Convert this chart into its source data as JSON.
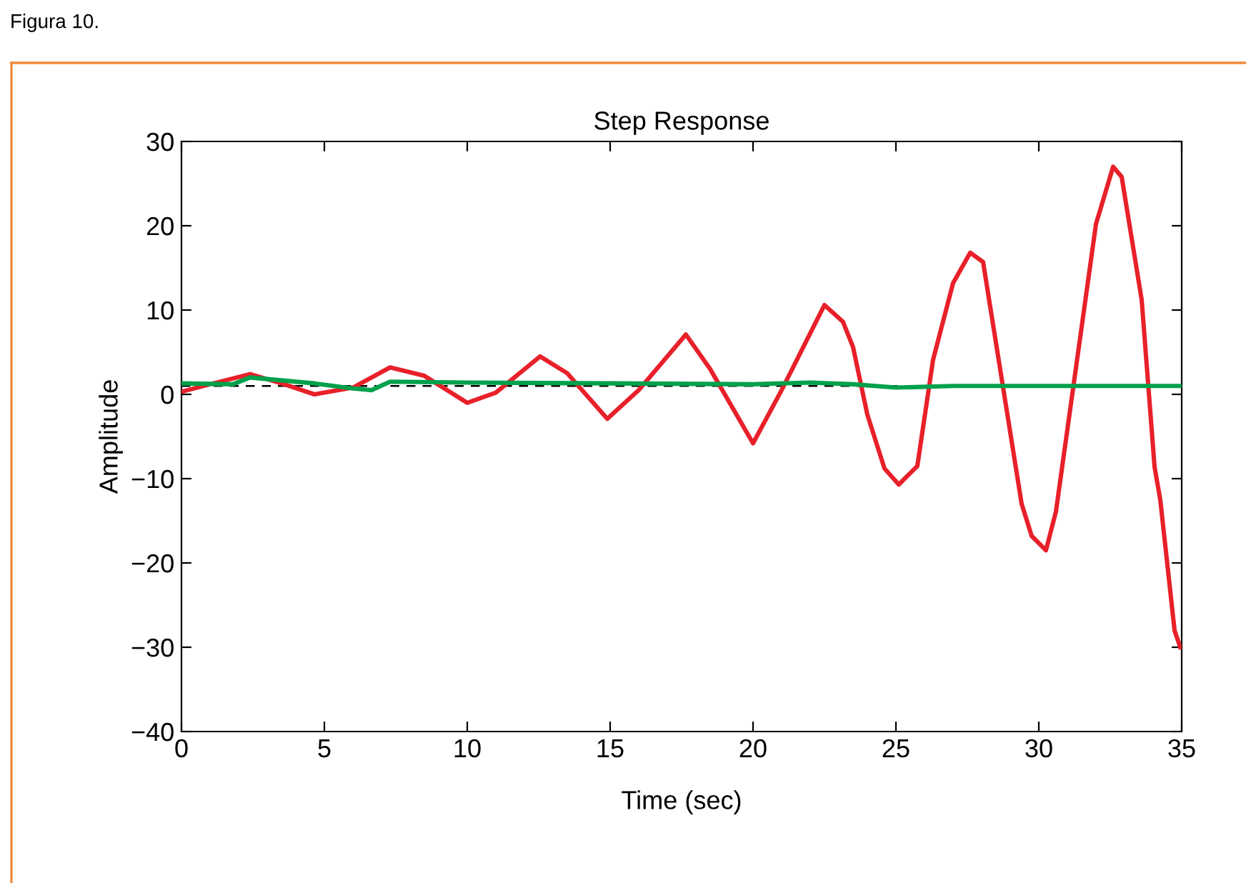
{
  "chart_data": {
    "type": "line",
    "title": "Step Response",
    "xlabel": "Time (sec)",
    "ylabel": "Amplitude",
    "annotations": [
      "Figura 10."
    ],
    "series": [
      {
        "color": "#e8202a",
        "x": [
          0,
          1,
          2.4,
          3.5,
          4.65,
          6,
          7.3,
          8.5,
          10,
          11,
          12.55,
          13.5,
          14.9,
          16,
          17.65,
          18.5,
          20,
          21,
          22.5,
          23.15,
          23.5,
          24,
          24.6,
          25.1,
          25.75,
          26.3,
          27,
          27.6,
          28.05,
          29.4,
          29.75,
          30.25,
          30.6,
          32,
          32.6,
          32.9,
          33.6,
          34.05,
          34.25,
          34.75,
          34.95
        ],
        "values": [
          0.3,
          1.2,
          2.4,
          1.3,
          0,
          0.8,
          3.2,
          2.2,
          -1,
          0.2,
          4.5,
          2.5,
          -2.9,
          0.5,
          7.1,
          3,
          -5.8,
          0.5,
          10.6,
          8.6,
          5.6,
          -2.4,
          -8.8,
          -10.7,
          -8.5,
          4.1,
          13.2,
          16.8,
          15.7,
          -13,
          -16.8,
          -18.5,
          -13.9,
          20.2,
          27,
          25.8,
          11.2,
          -8.6,
          -12.5,
          -28,
          -30
        ]
      },
      {
        "color": "#00a14b",
        "x": [
          0,
          1.8,
          2.4,
          4.65,
          6,
          6.65,
          7.3,
          10,
          15,
          20,
          22,
          23.5,
          25,
          27,
          30,
          35
        ],
        "values": [
          1.3,
          1.2,
          2.0,
          1.3,
          0.7,
          0.5,
          1.5,
          1.4,
          1.3,
          1.2,
          1.4,
          1.2,
          0.8,
          1.0,
          1.0,
          1.0
        ]
      }
    ],
    "ref_lines": [
      {
        "axis": "y",
        "value": 1,
        "color": "#000000",
        "line_style": "dashed"
      }
    ],
    "xlim": [
      0,
      35
    ],
    "xticks": [
      0,
      5,
      10,
      15,
      20,
      25,
      30,
      35
    ],
    "ylim": [
      -40,
      30
    ],
    "yticks": [
      {
        "value": -40,
        "label": "−40"
      },
      {
        "value": -30,
        "label": "−30"
      },
      {
        "value": -20,
        "label": "−20"
      },
      {
        "value": -10,
        "label": "−10"
      },
      0,
      10,
      20,
      30
    ],
    "grid": false,
    "legend": false,
    "line_style": "solid",
    "marker": "none"
  }
}
